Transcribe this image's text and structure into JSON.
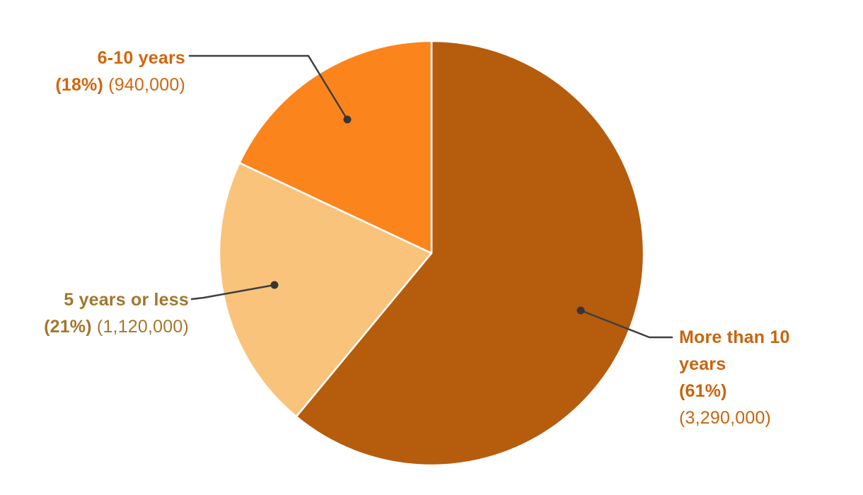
{
  "figure": {
    "background": "#FFFFFF",
    "stroke_between_slices": "#FFFFFF"
  },
  "chart_data": {
    "type": "pie",
    "title": "",
    "categories": [
      "More than 10 years",
      "5 years or less",
      "6-10 years"
    ],
    "values_pct": [
      61,
      21,
      18
    ],
    "values": [
      3290000,
      1120000,
      940000
    ],
    "start_angle_deg": -90,
    "direction": "clockwise",
    "legend_position": "none",
    "label_style": "external-callouts-with-leader-lines",
    "leader_line_color": "#3F3F3F",
    "leader_dot_color": "#363636",
    "slices": [
      {
        "label": "More than 10 years",
        "pct": 61,
        "pct_text": "(61%)",
        "value": 3290000,
        "value_text": "(3,290,000)",
        "color": "#B65C0D",
        "label_color": "#C8650F"
      },
      {
        "label": "5 years or less",
        "pct": 21,
        "pct_text": "(21%)",
        "value": 1120000,
        "value_text": "(1,120,000)",
        "color": "#FAC37C",
        "label_color": "#A2772D"
      },
      {
        "label": "6-10 years",
        "pct": 18,
        "pct_text": "(18%)",
        "value": 940000,
        "value_text": "(940,000)",
        "color": "#FB851C",
        "label_color": "#D2660E"
      }
    ]
  }
}
